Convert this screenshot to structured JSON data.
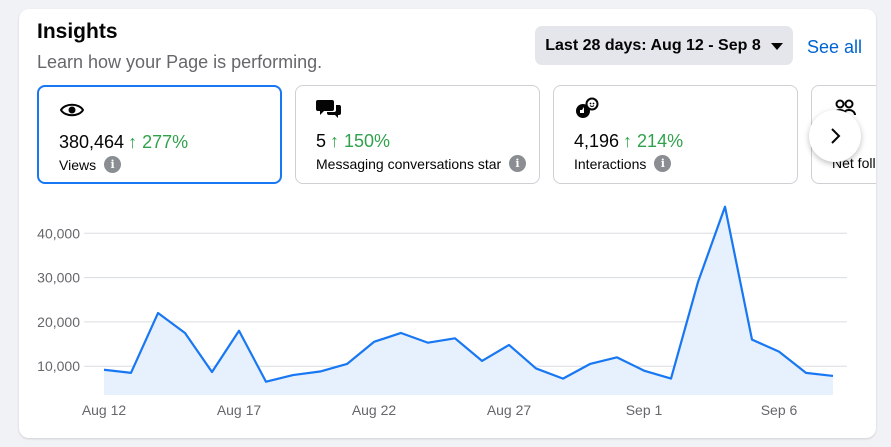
{
  "header": {
    "title": "Insights",
    "subtitle": "Learn how your Page is performing.",
    "date_range_label": "Last 28 days: Aug 12 - Sep 8",
    "see_all_label": "See all"
  },
  "metrics": [
    {
      "icon": "eye-icon",
      "value": "380,464",
      "change": "↑ 277%",
      "label": "Views",
      "selected": true
    },
    {
      "icon": "chat-bubbles-icon",
      "value": "5",
      "change": "↑ 150%",
      "label": "Messaging conversations started",
      "selected": false
    },
    {
      "icon": "interactions-icon",
      "value": "4,196",
      "change": "↑ 214%",
      "label": "Interactions",
      "selected": false
    },
    {
      "icon": "people-icon",
      "value": "",
      "change": "↑",
      "label": "Net follows",
      "selected": false
    }
  ],
  "colors": {
    "accent": "#1877f2",
    "positive": "#31a24c",
    "link": "#0064d1",
    "area_fill": "#e7f0fd"
  },
  "chart_data": {
    "type": "area",
    "x": [
      "Aug 12",
      "Aug 13",
      "Aug 14",
      "Aug 15",
      "Aug 16",
      "Aug 17",
      "Aug 18",
      "Aug 19",
      "Aug 20",
      "Aug 21",
      "Aug 22",
      "Aug 23",
      "Aug 24",
      "Aug 25",
      "Aug 26",
      "Aug 27",
      "Aug 28",
      "Aug 29",
      "Aug 30",
      "Aug 31",
      "Sep 1",
      "Sep 2",
      "Sep 3",
      "Sep 4",
      "Sep 5",
      "Sep 6",
      "Sep 7",
      "Sep 8"
    ],
    "values": [
      9200,
      8500,
      22000,
      17500,
      8700,
      18000,
      6500,
      8000,
      8800,
      10500,
      15500,
      17500,
      15300,
      16300,
      11200,
      14800,
      9500,
      7200,
      10500,
      12000,
      9000,
      7200,
      29000,
      46000,
      16000,
      13300,
      8500,
      7800
    ],
    "x_tick_labels": [
      "Aug 12",
      "Aug 17",
      "Aug 22",
      "Aug 27",
      "Sep 1",
      "Sep 6"
    ],
    "y_tick_labels": [
      "10,000",
      "20,000",
      "30,000",
      "40,000"
    ],
    "y_ticks": [
      10000,
      20000,
      30000,
      40000
    ],
    "ylim": [
      3500,
      50000
    ],
    "grid": true,
    "series_color": "#1877f2"
  }
}
